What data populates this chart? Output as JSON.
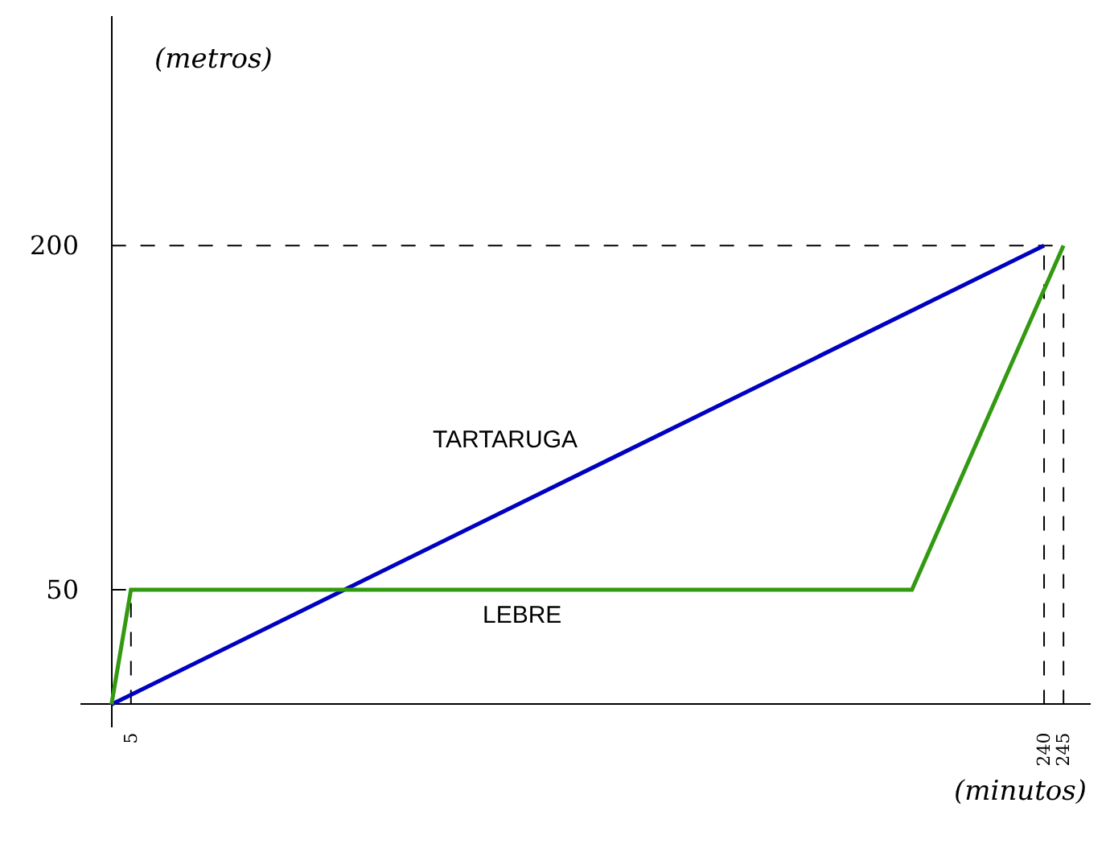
{
  "chart_data": {
    "type": "line",
    "xlabel": "(minutos)",
    "ylabel": "(metros)",
    "series": [
      {
        "name": "TARTARUGA",
        "color": "#0000c0",
        "x": [
          0,
          240
        ],
        "values": [
          0,
          200
        ]
      },
      {
        "name": "LEBRE",
        "color": "#339911",
        "x": [
          0,
          5,
          206,
          245
        ],
        "values": [
          0,
          50,
          50,
          200
        ]
      }
    ],
    "xlim": [
      -8,
      252
    ],
    "ylim": [
      -10,
      300
    ],
    "xticks": [
      5,
      240,
      245
    ],
    "yticks": [
      50,
      200
    ],
    "ref_lines": [
      {
        "axis": "y",
        "value": 50,
        "color": "#000000",
        "line_style": "dashed"
      },
      {
        "axis": "y",
        "value": 200,
        "color": "#000000",
        "line_style": "dashed"
      },
      {
        "axis": "x",
        "value": 5,
        "color": "#000000",
        "line_style": "dashed"
      },
      {
        "axis": "x",
        "value": 240,
        "color": "#000000",
        "line_style": "dashed"
      },
      {
        "axis": "x",
        "value": 245,
        "color": "#000000",
        "line_style": "dashed"
      }
    ],
    "grid": false,
    "legend": false,
    "marker": "none",
    "line_style": "solid"
  }
}
